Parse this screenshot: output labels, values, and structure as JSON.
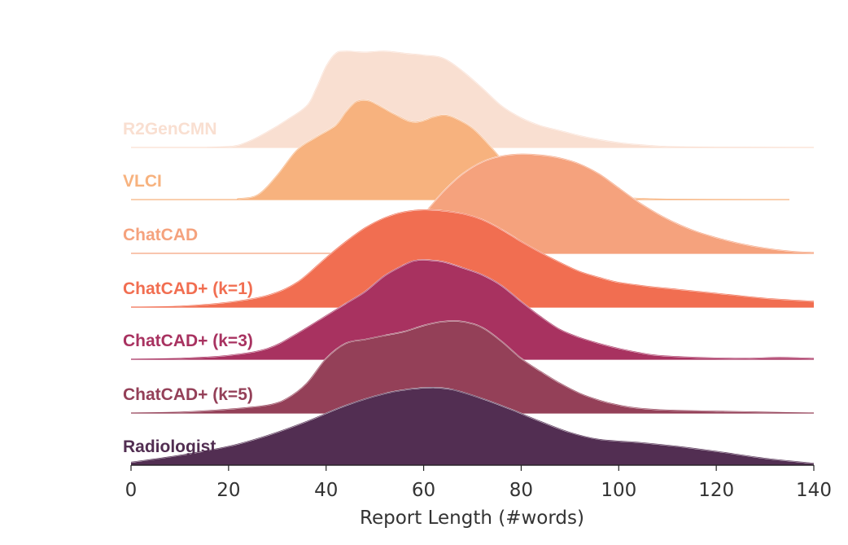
{
  "chart_data": {
    "type": "ridgeline",
    "xlabel": "Report Length (#words)",
    "xlim": [
      0,
      140
    ],
    "x_ticks": [
      0,
      20,
      40,
      60,
      80,
      100,
      120,
      140
    ],
    "grid": false,
    "series": [
      {
        "name": "R2GenCMN",
        "color": "#f9dfd1",
        "density": [
          [
            0,
            0
          ],
          [
            10,
            0
          ],
          [
            20,
            0.01
          ],
          [
            24,
            0.06
          ],
          [
            28,
            0.16
          ],
          [
            32,
            0.28
          ],
          [
            36,
            0.42
          ],
          [
            38,
            0.6
          ],
          [
            40,
            0.82
          ],
          [
            42,
            0.95
          ],
          [
            44,
            0.97
          ],
          [
            48,
            0.96
          ],
          [
            52,
            0.97
          ],
          [
            56,
            0.95
          ],
          [
            60,
            0.93
          ],
          [
            64,
            0.9
          ],
          [
            68,
            0.77
          ],
          [
            72,
            0.6
          ],
          [
            76,
            0.42
          ],
          [
            80,
            0.3
          ],
          [
            84,
            0.22
          ],
          [
            88,
            0.17
          ],
          [
            92,
            0.12
          ],
          [
            96,
            0.08
          ],
          [
            100,
            0.05
          ],
          [
            104,
            0.03
          ],
          [
            110,
            0.01
          ],
          [
            120,
            0.003
          ],
          [
            140,
            0
          ]
        ]
      },
      {
        "name": "VLCI",
        "color": "#f7b27e",
        "density": [
          [
            0,
            0
          ],
          [
            20,
            0
          ],
          [
            22,
            0.01
          ],
          [
            26,
            0.05
          ],
          [
            30,
            0.25
          ],
          [
            34,
            0.5
          ],
          [
            38,
            0.63
          ],
          [
            42,
            0.75
          ],
          [
            44,
            0.88
          ],
          [
            46,
            0.98
          ],
          [
            48,
            1.0
          ],
          [
            50,
            0.97
          ],
          [
            54,
            0.86
          ],
          [
            58,
            0.78
          ],
          [
            62,
            0.83
          ],
          [
            64,
            0.85
          ],
          [
            66,
            0.83
          ],
          [
            70,
            0.72
          ],
          [
            74,
            0.52
          ],
          [
            78,
            0.3
          ],
          [
            82,
            0.18
          ],
          [
            86,
            0.13
          ],
          [
            90,
            0.1
          ],
          [
            94,
            0.07
          ],
          [
            98,
            0.04
          ],
          [
            102,
            0.02
          ],
          [
            106,
            0.01
          ],
          [
            110,
            0.005
          ],
          [
            120,
            0.002
          ],
          [
            135,
            0
          ]
        ]
      },
      {
        "name": "ChatCAD",
        "color": "#f5a27d",
        "density": [
          [
            0,
            0
          ],
          [
            40,
            0
          ],
          [
            44,
            0.02
          ],
          [
            48,
            0.05
          ],
          [
            52,
            0.1
          ],
          [
            56,
            0.22
          ],
          [
            60,
            0.4
          ],
          [
            64,
            0.62
          ],
          [
            68,
            0.8
          ],
          [
            72,
            0.92
          ],
          [
            76,
            0.98
          ],
          [
            80,
            1.0
          ],
          [
            84,
            0.99
          ],
          [
            88,
            0.96
          ],
          [
            92,
            0.9
          ],
          [
            96,
            0.8
          ],
          [
            100,
            0.66
          ],
          [
            104,
            0.52
          ],
          [
            108,
            0.4
          ],
          [
            112,
            0.3
          ],
          [
            116,
            0.22
          ],
          [
            120,
            0.16
          ],
          [
            124,
            0.11
          ],
          [
            128,
            0.07
          ],
          [
            132,
            0.04
          ],
          [
            136,
            0.02
          ],
          [
            140,
            0.01
          ]
        ]
      },
      {
        "name": "ChatCAD+ (k=1)",
        "color": "#f16e51",
        "density": [
          [
            0,
            0
          ],
          [
            10,
            0.01
          ],
          [
            20,
            0.05
          ],
          [
            28,
            0.12
          ],
          [
            34,
            0.25
          ],
          [
            40,
            0.5
          ],
          [
            44,
            0.66
          ],
          [
            48,
            0.8
          ],
          [
            52,
            0.9
          ],
          [
            56,
            0.96
          ],
          [
            60,
            0.98
          ],
          [
            64,
            0.97
          ],
          [
            68,
            0.94
          ],
          [
            72,
            0.88
          ],
          [
            76,
            0.78
          ],
          [
            80,
            0.66
          ],
          [
            84,
            0.55
          ],
          [
            88,
            0.45
          ],
          [
            92,
            0.36
          ],
          [
            96,
            0.3
          ],
          [
            100,
            0.25
          ],
          [
            106,
            0.21
          ],
          [
            112,
            0.18
          ],
          [
            120,
            0.14
          ],
          [
            130,
            0.09
          ],
          [
            140,
            0.06
          ]
        ]
      },
      {
        "name": "ChatCAD+ (k=3)",
        "color": "#a83260",
        "density": [
          [
            0,
            0
          ],
          [
            10,
            0.01
          ],
          [
            20,
            0.04
          ],
          [
            28,
            0.11
          ],
          [
            34,
            0.26
          ],
          [
            40,
            0.44
          ],
          [
            44,
            0.56
          ],
          [
            48,
            0.68
          ],
          [
            52,
            0.84
          ],
          [
            56,
            0.95
          ],
          [
            58,
            0.99
          ],
          [
            60,
            1.0
          ],
          [
            64,
            0.98
          ],
          [
            68,
            0.92
          ],
          [
            72,
            0.85
          ],
          [
            76,
            0.74
          ],
          [
            80,
            0.58
          ],
          [
            84,
            0.43
          ],
          [
            88,
            0.3
          ],
          [
            92,
            0.22
          ],
          [
            96,
            0.16
          ],
          [
            100,
            0.11
          ],
          [
            104,
            0.07
          ],
          [
            108,
            0.04
          ],
          [
            116,
            0.02
          ],
          [
            126,
            0.01
          ],
          [
            133,
            0.02
          ],
          [
            140,
            0.01
          ]
        ]
      },
      {
        "name": "ChatCAD+ (k=5)",
        "color": "#944058",
        "density": [
          [
            0,
            0
          ],
          [
            10,
            0.01
          ],
          [
            20,
            0.04
          ],
          [
            28,
            0.08
          ],
          [
            32,
            0.15
          ],
          [
            36,
            0.3
          ],
          [
            40,
            0.55
          ],
          [
            44,
            0.7
          ],
          [
            48,
            0.74
          ],
          [
            52,
            0.78
          ],
          [
            56,
            0.82
          ],
          [
            60,
            0.88
          ],
          [
            64,
            0.92
          ],
          [
            68,
            0.92
          ],
          [
            72,
            0.86
          ],
          [
            76,
            0.72
          ],
          [
            80,
            0.55
          ],
          [
            84,
            0.42
          ],
          [
            88,
            0.3
          ],
          [
            92,
            0.2
          ],
          [
            96,
            0.13
          ],
          [
            100,
            0.08
          ],
          [
            104,
            0.05
          ],
          [
            110,
            0.03
          ],
          [
            120,
            0.02
          ],
          [
            130,
            0.01
          ],
          [
            140,
            0
          ]
        ]
      },
      {
        "name": "Radiologist",
        "color": "#522e52",
        "density": [
          [
            0,
            0.03
          ],
          [
            10,
            0.1
          ],
          [
            20,
            0.19
          ],
          [
            28,
            0.3
          ],
          [
            36,
            0.44
          ],
          [
            44,
            0.6
          ],
          [
            52,
            0.72
          ],
          [
            58,
            0.77
          ],
          [
            62,
            0.78
          ],
          [
            66,
            0.76
          ],
          [
            72,
            0.67
          ],
          [
            78,
            0.56
          ],
          [
            84,
            0.44
          ],
          [
            90,
            0.33
          ],
          [
            96,
            0.26
          ],
          [
            104,
            0.23
          ],
          [
            112,
            0.19
          ],
          [
            120,
            0.14
          ],
          [
            130,
            0.07
          ],
          [
            140,
            0.02
          ]
        ]
      }
    ]
  }
}
